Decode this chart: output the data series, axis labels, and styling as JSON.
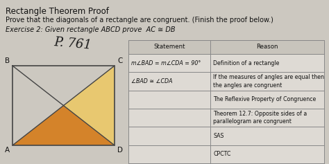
{
  "bg_color": "#ccc8c0",
  "title": "Rectangle Theorem Proof",
  "subtitle": "Prove that the diagonals of a rectangle are congruent. (Finish the proof below.)",
  "exercise": "Exercise 2: Given rectangle ABCD prove  AC ≅ DB",
  "handwriting": "P. 761",
  "orange_fill": "#d4832a",
  "yellow_fill": "#e8c870",
  "rect_line_color": "#444444",
  "table_line_color": "#888888",
  "title_fontsize": 8.5,
  "subtitle_fontsize": 7.0,
  "exercise_fontsize": 7.0,
  "table_fontsize": 6.2,
  "handwriting_fontsize": 13,
  "rows": [
    [
      "m∠BAD = m∠CDA = 90°",
      "Definition of a rectangle"
    ],
    [
      "∠BAD ≅ ∠CDA",
      "If the measures of angles are equal then\nthe angles are congruent"
    ],
    [
      "",
      "The Reflexive Property of Congruence"
    ],
    [
      "",
      "Theorem 12.7: Opposite sides of a\nparallelogram are congruent"
    ],
    [
      "",
      "SAS"
    ],
    [
      "",
      "CPCTC"
    ]
  ]
}
